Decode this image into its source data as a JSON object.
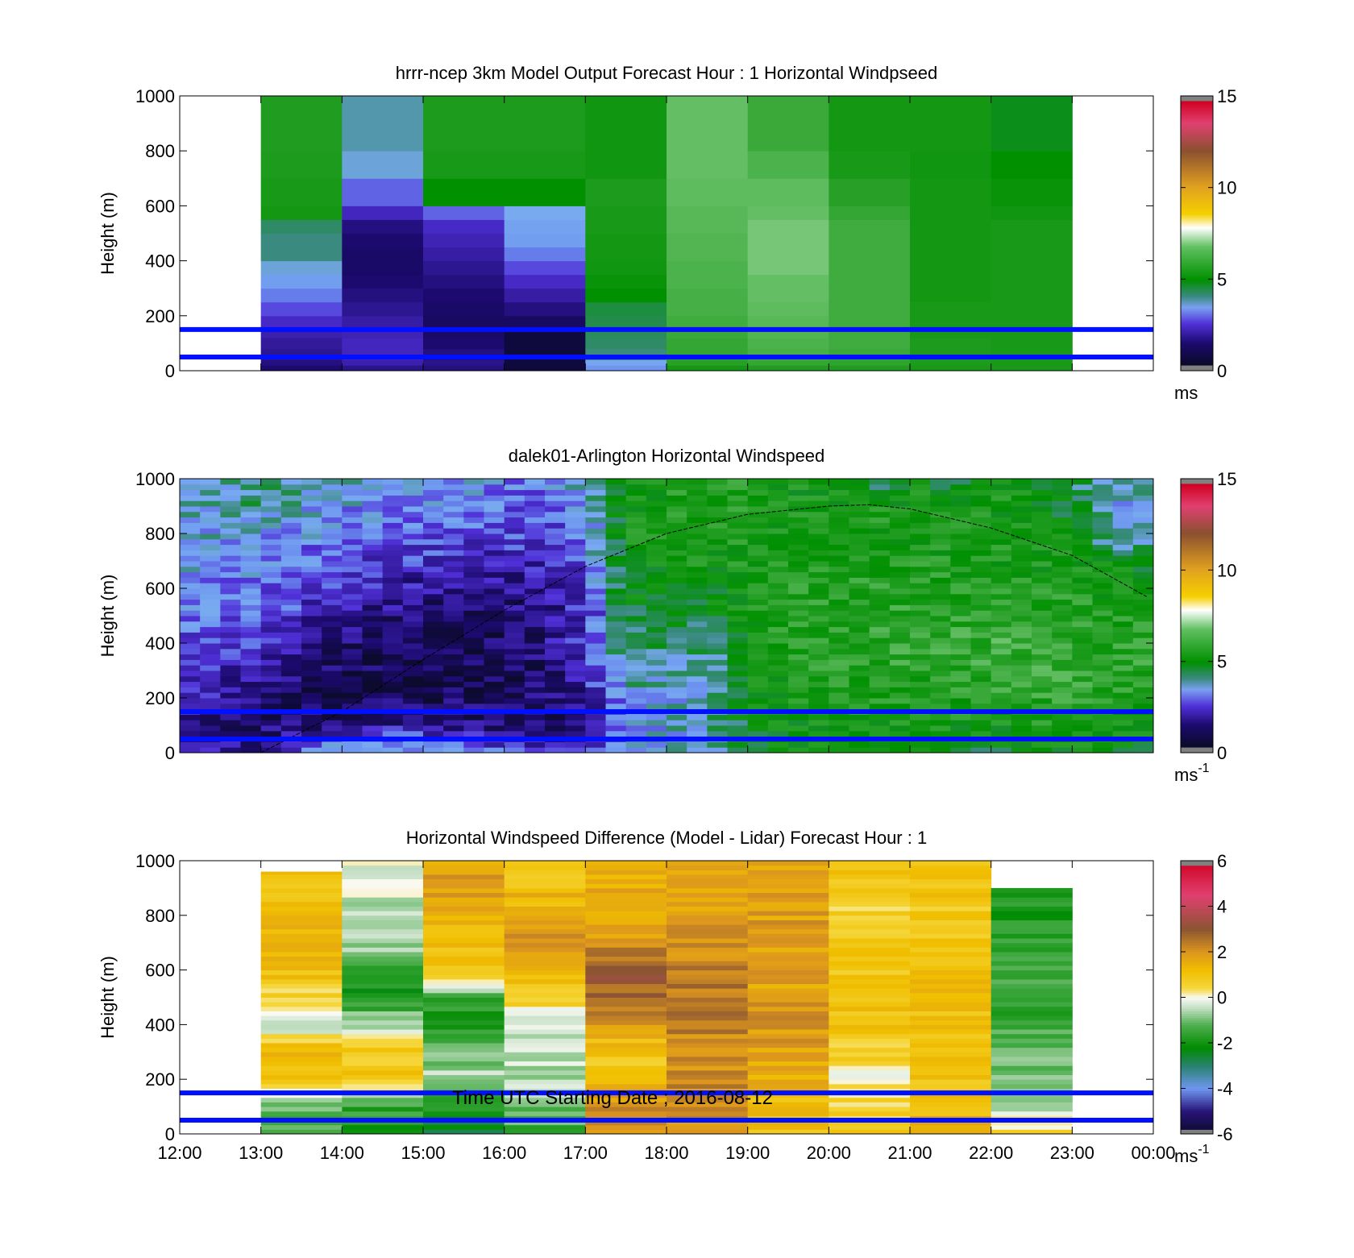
{
  "figure": {
    "xlabel": "Time UTC  Starting Date ; 2016-08-12",
    "time_ticks": [
      "12:00",
      "13:00",
      "14:00",
      "15:00",
      "16:00",
      "17:00",
      "18:00",
      "19:00",
      "20:00",
      "21:00",
      "22:00",
      "23:00",
      "00:00"
    ]
  },
  "chart_data": [
    {
      "type": "heatmap",
      "title": "hrrr-ncep 3km Model Output   Forecast Hour : 1 Horizontal Windpseed",
      "ylabel": "Height (m)",
      "y_ticks": [
        "0",
        "200",
        "400",
        "600",
        "800",
        "1000"
      ],
      "ylim": [
        0,
        1000
      ],
      "x_range_hours_utc": [
        12,
        24
      ],
      "colorbar": {
        "ticks": [
          "0",
          "5",
          "10",
          "15"
        ],
        "range": [
          0,
          15
        ],
        "unit": "ms"
      },
      "reference_lines_m": [
        50,
        150
      ],
      "time_bins_utc": [
        "13:00",
        "14:00",
        "15:00",
        "16:00",
        "17:00",
        "18:00",
        "19:00",
        "20:00",
        "21:00",
        "22:00"
      ],
      "height_levels_m": [
        20,
        40,
        80,
        120,
        160,
        200,
        250,
        300,
        350,
        400,
        450,
        500,
        550,
        600,
        700,
        800,
        1000
      ],
      "values_ms": [
        [
          1.0,
          1.2,
          1.4,
          1.5,
          1.7,
          2.0,
          2.4,
          2.8,
          3.2,
          3.6,
          4.0,
          4.0,
          4.2,
          5.5,
          5.6,
          5.7,
          5.8
        ],
        [
          1.3,
          1.7,
          1.9,
          1.9,
          1.8,
          1.6,
          1.4,
          1.2,
          1.0,
          0.9,
          0.9,
          1.0,
          1.2,
          1.9,
          2.6,
          3.6,
          3.8
        ],
        [
          1.2,
          1.3,
          1.2,
          1.0,
          0.9,
          0.8,
          0.9,
          1.0,
          1.2,
          1.4,
          1.6,
          1.8,
          2.0,
          2.6,
          5.0,
          5.6,
          5.7
        ],
        [
          0.3,
          0.3,
          0.3,
          0.3,
          0.3,
          0.8,
          1.2,
          1.6,
          2.0,
          2.4,
          2.8,
          3.2,
          3.3,
          3.5,
          5.0,
          5.6,
          5.7
        ],
        [
          3.0,
          3.4,
          4.0,
          4.2,
          4.3,
          4.4,
          4.5,
          5.0,
          5.2,
          5.4,
          5.5,
          5.5,
          5.6,
          5.6,
          5.7,
          5.4,
          5.4
        ],
        [
          5.5,
          6.0,
          6.2,
          6.2,
          6.3,
          6.4,
          6.5,
          6.5,
          6.6,
          6.6,
          6.7,
          6.7,
          6.8,
          6.8,
          6.9,
          7.0,
          7.0
        ],
        [
          5.8,
          6.2,
          6.5,
          6.6,
          6.7,
          6.8,
          6.9,
          7.0,
          7.0,
          7.1,
          7.1,
          7.1,
          7.1,
          7.0,
          6.9,
          6.6,
          6.3
        ],
        [
          5.8,
          6.1,
          6.3,
          6.4,
          6.4,
          6.4,
          6.4,
          6.4,
          6.4,
          6.4,
          6.4,
          6.4,
          6.4,
          6.2,
          6.0,
          5.6,
          5.5
        ],
        [
          5.6,
          5.7,
          5.7,
          5.7,
          5.6,
          5.6,
          5.6,
          5.5,
          5.5,
          5.5,
          5.5,
          5.5,
          5.5,
          5.5,
          5.5,
          5.4,
          5.5
        ],
        [
          5.6,
          5.6,
          5.6,
          5.6,
          5.6,
          5.6,
          5.6,
          5.6,
          5.6,
          5.6,
          5.6,
          5.6,
          5.6,
          5.4,
          5.2,
          5.0,
          4.8
        ]
      ]
    },
    {
      "type": "heatmap",
      "title": "dalek01-Arlington  Horizontal Windspeed",
      "ylabel": "Height (m)",
      "y_ticks": [
        "0",
        "200",
        "400",
        "600",
        "800",
        "1000"
      ],
      "ylim": [
        0,
        1000
      ],
      "x_range_hours_utc": [
        12,
        24
      ],
      "colorbar": {
        "ticks": [
          "0",
          "5",
          "10",
          "15"
        ],
        "range": [
          0,
          15
        ],
        "unit": "ms",
        "unit_exponent": "-1"
      },
      "reference_lines_m": [
        50,
        150
      ],
      "value_profile_approx_ms": {
        "time_knots_utc": [
          "12:00",
          "12:30",
          "13:00",
          "13:30",
          "14:00",
          "14:30",
          "15:00",
          "15:30",
          "16:00",
          "16:30",
          "17:00",
          "17:30",
          "18:00",
          "18:30",
          "19:00",
          "19:30",
          "20:00",
          "20:30",
          "21:00",
          "21:30",
          "22:00",
          "22:30",
          "23:00",
          "23:30",
          "00:00"
        ],
        "height_knots_m": [
          0,
          100,
          200,
          300,
          400,
          500,
          600,
          700,
          800,
          900,
          1000
        ],
        "values_ms": [
          [
            2.0,
            1.5,
            2.0,
            2.2,
            2.5,
            2.8,
            3.0,
            3.2,
            3.5,
            3.5,
            3.5
          ],
          [
            1.8,
            1.2,
            1.5,
            2.0,
            2.4,
            2.7,
            3.0,
            3.2,
            3.4,
            3.5,
            3.5
          ],
          [
            1.5,
            1.0,
            1.0,
            1.5,
            2.0,
            2.5,
            2.8,
            3.0,
            3.3,
            4.0,
            4.5
          ],
          [
            2.5,
            1.0,
            0.8,
            1.0,
            1.5,
            2.0,
            2.5,
            2.8,
            3.0,
            3.5,
            4.0
          ],
          [
            4.0,
            1.2,
            0.8,
            0.8,
            1.0,
            1.5,
            2.0,
            2.5,
            3.0,
            3.2,
            3.5
          ],
          [
            3.8,
            1.5,
            0.7,
            0.6,
            0.8,
            1.2,
            1.7,
            2.2,
            2.7,
            3.0,
            3.3
          ],
          [
            3.5,
            1.5,
            0.7,
            0.6,
            0.8,
            1.0,
            1.5,
            2.0,
            2.6,
            3.0,
            3.2
          ],
          [
            3.0,
            1.2,
            0.8,
            0.6,
            0.7,
            1.0,
            1.4,
            1.9,
            2.5,
            2.9,
            3.1
          ],
          [
            2.5,
            1.0,
            0.8,
            0.8,
            0.8,
            1.0,
            1.3,
            1.8,
            2.4,
            2.8,
            3.0
          ],
          [
            2.0,
            0.8,
            0.9,
            1.0,
            1.2,
            1.2,
            1.5,
            1.8,
            2.2,
            2.6,
            3.0
          ],
          [
            1.8,
            1.0,
            1.5,
            2.0,
            2.4,
            2.0,
            2.2,
            2.5,
            2.8,
            3.0,
            3.5
          ],
          [
            3.0,
            3.0,
            3.5,
            4.0,
            4.2,
            4.5,
            5.0,
            5.2,
            5.4,
            5.5,
            5.5
          ],
          [
            3.5,
            3.5,
            3.5,
            3.8,
            4.2,
            4.8,
            5.2,
            5.5,
            5.5,
            5.6,
            5.6
          ],
          [
            3.5,
            3.5,
            3.5,
            3.6,
            4.0,
            4.5,
            5.0,
            5.4,
            5.6,
            5.7,
            5.7
          ],
          [
            4.5,
            5.0,
            5.2,
            5.4,
            5.5,
            5.6,
            5.7,
            5.6,
            5.6,
            5.7,
            5.7
          ],
          [
            5.0,
            5.3,
            5.5,
            5.6,
            5.8,
            5.9,
            5.8,
            5.7,
            5.6,
            5.5,
            5.5
          ],
          [
            5.0,
            5.4,
            5.6,
            5.8,
            6.0,
            6.0,
            5.8,
            5.7,
            5.6,
            5.5,
            5.4
          ],
          [
            5.0,
            5.5,
            5.7,
            5.9,
            6.1,
            6.0,
            5.9,
            5.7,
            5.6,
            5.5,
            4.0
          ],
          [
            4.8,
            5.5,
            5.8,
            6.0,
            6.2,
            6.0,
            5.9,
            5.7,
            5.6,
            5.5,
            5.4
          ],
          [
            4.5,
            5.5,
            5.8,
            6.0,
            6.2,
            6.0,
            5.8,
            5.6,
            5.5,
            5.5,
            4.5
          ],
          [
            4.5,
            5.5,
            5.9,
            6.1,
            6.3,
            6.0,
            5.7,
            5.6,
            5.5,
            5.5,
            5.4
          ],
          [
            5.0,
            5.5,
            6.0,
            6.2,
            6.3,
            6.0,
            5.7,
            5.5,
            5.4,
            5.4,
            5.5
          ],
          [
            5.2,
            5.6,
            6.0,
            6.2,
            6.2,
            6.0,
            5.7,
            5.5,
            5.3,
            4.5,
            4.5
          ],
          [
            5.0,
            5.5,
            5.8,
            6.0,
            5.9,
            5.7,
            5.5,
            5.0,
            3.5,
            3.5,
            3.5
          ],
          [
            5.0,
            5.5,
            5.8,
            6.0,
            5.9,
            5.7,
            5.5,
            5.0,
            3.5,
            3.5,
            3.5
          ]
        ]
      },
      "boundary_layer_curve_m": {
        "time_utc": [
          "13:00",
          "14:00",
          "15:00",
          "16:00",
          "17:00",
          "18:00",
          "19:00",
          "20:00",
          "20:30",
          "21:00",
          "22:00",
          "23:00",
          "23:55"
        ],
        "height_m": [
          0,
          150,
          340,
          520,
          680,
          800,
          870,
          900,
          905,
          890,
          820,
          720,
          570
        ]
      }
    },
    {
      "type": "heatmap",
      "title": "Horizontal Windspeed Difference (Model - Lidar) Forecast Hour : 1",
      "ylabel": "Height (m)",
      "y_ticks": [
        "0",
        "200",
        "400",
        "600",
        "800",
        "1000"
      ],
      "ylim": [
        0,
        1000
      ],
      "x_range_hours_utc": [
        12,
        24
      ],
      "colorbar": {
        "ticks": [
          "-6",
          "-4",
          "-2",
          "0",
          "2",
          "4",
          "6"
        ],
        "range": [
          -6,
          6
        ],
        "unit": "ms",
        "unit_exponent": "-1"
      },
      "reference_lines_m": [
        50,
        150
      ],
      "time_bins_utc": [
        "13:00",
        "14:00",
        "15:00",
        "16:00",
        "17:00",
        "18:00",
        "19:00",
        "20:00",
        "21:00",
        "22:00"
      ],
      "valid_top_m": [
        960,
        1000,
        1000,
        1000,
        1000,
        1000,
        1000,
        1000,
        1000,
        900
      ],
      "profile_knots_m": [
        0,
        100,
        200,
        300,
        400,
        500,
        600,
        700,
        800,
        900,
        1000
      ],
      "values_ms": [
        [
          -1.5,
          -1.0,
          0.8,
          1.5,
          -0.5,
          0.5,
          1.2,
          1.3,
          1.2,
          1.0,
          1.0
        ],
        [
          -2.0,
          -1.5,
          1.0,
          0.8,
          -0.5,
          -2.0,
          -1.8,
          -0.5,
          -0.5,
          -0.3,
          -0.3
        ],
        [
          -2.5,
          -2.0,
          -0.5,
          -1.0,
          -2.0,
          -1.5,
          1.0,
          1.2,
          1.5,
          1.8,
          1.8
        ],
        [
          -1.5,
          -1.0,
          -0.5,
          -0.5,
          -0.5,
          0.8,
          1.5,
          2.0,
          1.5,
          1.2,
          1.0
        ],
        [
          2.0,
          2.0,
          1.2,
          0.8,
          2.0,
          2.8,
          3.0,
          2.0,
          1.8,
          1.5,
          1.5
        ],
        [
          2.0,
          2.2,
          2.2,
          2.0,
          2.4,
          2.6,
          2.3,
          2.0,
          1.8,
          1.8,
          1.8
        ],
        [
          1.0,
          1.2,
          1.5,
          1.8,
          2.0,
          1.8,
          1.7,
          1.8,
          1.8,
          1.8,
          1.8
        ],
        [
          0.8,
          0.5,
          0.2,
          0.6,
          1.0,
          0.9,
          1.0,
          1.1,
          0.5,
          1.0,
          1.0
        ],
        [
          1.5,
          1.2,
          1.0,
          0.9,
          1.0,
          1.2,
          1.2,
          1.0,
          0.8,
          1.0,
          1.0
        ],
        [
          0.5,
          -0.5,
          -1.0,
          -1.2,
          -1.5,
          -1.5,
          -1.4,
          -1.6,
          -1.8,
          -2.0,
          -2.0
        ]
      ]
    }
  ]
}
